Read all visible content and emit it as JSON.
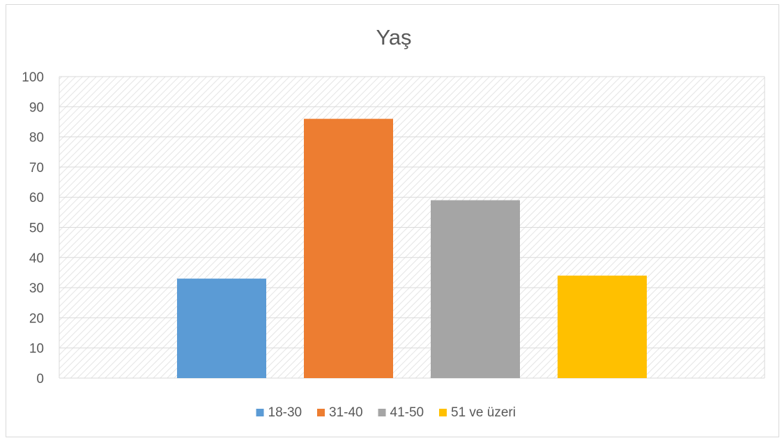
{
  "chart_data": {
    "type": "bar",
    "title": "Yaş",
    "xlabel": "",
    "ylabel": "",
    "ylim": [
      0,
      100
    ],
    "yticks": [
      0,
      10,
      20,
      30,
      40,
      50,
      60,
      70,
      80,
      90,
      100
    ],
    "grid": true,
    "legend_position": "bottom",
    "series": [
      {
        "name": "18-30",
        "value": 33,
        "color": "#5B9BD5"
      },
      {
        "name": "31-40",
        "value": 86,
        "color": "#ED7D31"
      },
      {
        "name": "41-50",
        "value": 59,
        "color": "#A5A5A5"
      },
      {
        "name": "51 ve üzeri",
        "value": 34,
        "color": "#FFC000"
      }
    ]
  },
  "colors": {
    "gridline": "#d9d9d9",
    "hatch": "#e7e7e7",
    "text": "#595959"
  }
}
